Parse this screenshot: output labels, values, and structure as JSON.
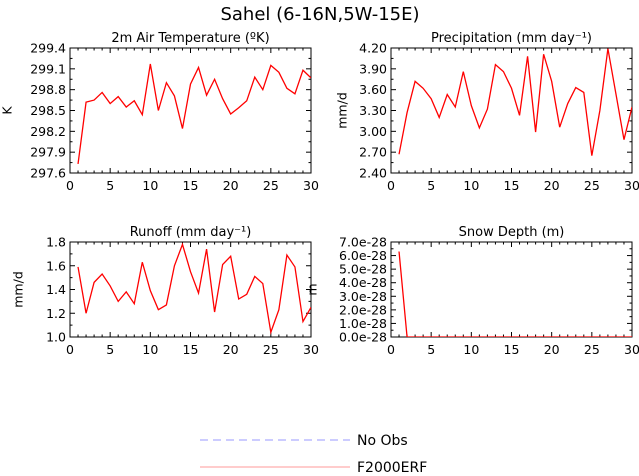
{
  "figure_title": "Sahel (6-16N,5W-15E)",
  "legend": [
    {
      "label": "No Obs",
      "color": "#9999ff",
      "style": "dashed"
    },
    {
      "label": "F2000ERF",
      "color": "#ff9999",
      "style": "solid"
    }
  ],
  "line_color": "#ff0000",
  "chart_data": [
    {
      "type": "line",
      "title": "2m Air Temperature (ºK)",
      "xlabel": "",
      "ylabel": "K",
      "xlim": [
        0,
        30
      ],
      "ylim": [
        297.6,
        299.4
      ],
      "xticks": [
        "0",
        "5",
        "10",
        "15",
        "20",
        "25",
        "30"
      ],
      "xtick_values": [
        0,
        5,
        10,
        15,
        20,
        25,
        30
      ],
      "yticks": [
        "297.6",
        "297.9",
        "298.2",
        "298.5",
        "298.8",
        "299.1",
        "299.4"
      ],
      "ytick_values": [
        297.6,
        297.9,
        298.2,
        298.5,
        298.8,
        299.1,
        299.4
      ],
      "series": [
        {
          "name": "F2000ERF",
          "x": [
            1,
            2,
            3,
            4,
            5,
            6,
            7,
            8,
            9,
            10,
            11,
            12,
            13,
            14,
            15,
            16,
            17,
            18,
            19,
            20,
            21,
            22,
            23,
            24,
            25,
            26,
            27,
            28,
            29,
            30
          ],
          "values": [
            297.73,
            298.62,
            298.65,
            298.76,
            298.6,
            298.7,
            298.55,
            298.64,
            298.44,
            299.17,
            298.5,
            298.9,
            298.71,
            298.24,
            298.88,
            299.12,
            298.72,
            298.95,
            298.67,
            298.45,
            298.54,
            298.64,
            298.98,
            298.8,
            299.15,
            299.05,
            298.82,
            298.74,
            299.08,
            298.97
          ]
        }
      ]
    },
    {
      "type": "line",
      "title": "Precipitation (mm day⁻¹)",
      "xlabel": "",
      "ylabel": "mm/d",
      "xlim": [
        0,
        30
      ],
      "ylim": [
        2.4,
        4.2
      ],
      "xticks": [
        "0",
        "5",
        "10",
        "15",
        "20",
        "25",
        "30"
      ],
      "xtick_values": [
        0,
        5,
        10,
        15,
        20,
        25,
        30
      ],
      "yticks": [
        "2.40",
        "2.70",
        "3.00",
        "3.30",
        "3.60",
        "3.90",
        "4.20"
      ],
      "ytick_values": [
        2.4,
        2.7,
        3.0,
        3.3,
        3.6,
        3.9,
        4.2
      ],
      "series": [
        {
          "name": "F2000ERF",
          "x": [
            1,
            2,
            3,
            4,
            5,
            6,
            7,
            8,
            9,
            10,
            11,
            12,
            13,
            14,
            15,
            16,
            17,
            18,
            19,
            20,
            21,
            22,
            23,
            24,
            25,
            26,
            27,
            28,
            29,
            30
          ],
          "values": [
            2.67,
            3.27,
            3.72,
            3.62,
            3.47,
            3.2,
            3.53,
            3.35,
            3.86,
            3.37,
            3.05,
            3.32,
            3.96,
            3.86,
            3.62,
            3.23,
            4.08,
            2.99,
            4.11,
            3.72,
            3.06,
            3.4,
            3.63,
            3.56,
            2.65,
            3.3,
            4.19,
            3.54,
            2.88,
            3.35
          ]
        }
      ]
    },
    {
      "type": "line",
      "title": "Runoff (mm day⁻¹)",
      "xlabel": "",
      "ylabel": "mm/d",
      "xlim": [
        0,
        30
      ],
      "ylim": [
        1.0,
        1.8
      ],
      "xticks": [
        "0",
        "5",
        "10",
        "15",
        "20",
        "25",
        "30"
      ],
      "xtick_values": [
        0,
        5,
        10,
        15,
        20,
        25,
        30
      ],
      "yticks": [
        "1.0",
        "1.2",
        "1.4",
        "1.6",
        "1.8"
      ],
      "ytick_values": [
        1.0,
        1.2,
        1.4,
        1.6,
        1.8
      ],
      "series": [
        {
          "name": "F2000ERF",
          "x": [
            1,
            2,
            3,
            4,
            5,
            6,
            7,
            8,
            9,
            10,
            11,
            12,
            13,
            14,
            15,
            16,
            17,
            18,
            19,
            20,
            21,
            22,
            23,
            24,
            25,
            26,
            27,
            28,
            29,
            30
          ],
          "values": [
            1.59,
            1.2,
            1.46,
            1.53,
            1.43,
            1.3,
            1.38,
            1.28,
            1.63,
            1.39,
            1.23,
            1.27,
            1.6,
            1.78,
            1.55,
            1.37,
            1.74,
            1.21,
            1.61,
            1.68,
            1.32,
            1.36,
            1.51,
            1.45,
            1.04,
            1.23,
            1.69,
            1.59,
            1.13,
            1.25
          ]
        }
      ]
    },
    {
      "type": "line",
      "title": "Snow Depth (m)",
      "xlabel": "",
      "ylabel": "m",
      "xlim": [
        0,
        30
      ],
      "ylim": [
        0,
        7e-28
      ],
      "xticks": [
        "0",
        "5",
        "10",
        "15",
        "20",
        "25",
        "30"
      ],
      "xtick_values": [
        0,
        5,
        10,
        15,
        20,
        25,
        30
      ],
      "yticks": [
        "0.0e-28",
        "1.0e-28",
        "2.0e-28",
        "3.0e-28",
        "4.0e-28",
        "5.0e-28",
        "6.0e-28",
        "7.0e-28"
      ],
      "ytick_values": [
        0,
        1e-28,
        2e-28,
        3e-28,
        4e-28,
        5e-28,
        6e-28,
        7e-28
      ],
      "series": [
        {
          "name": "F2000ERF",
          "x": [
            1,
            2,
            3,
            4,
            5,
            6,
            7,
            8,
            9,
            10,
            11,
            12,
            13,
            14,
            15,
            16,
            17,
            18,
            19,
            20,
            21,
            22,
            23,
            24,
            25,
            26,
            27,
            28,
            29,
            30
          ],
          "values": [
            6.3e-28,
            0,
            0,
            0,
            0,
            0,
            0,
            0,
            0,
            0,
            0,
            0,
            0,
            0,
            0,
            0,
            0,
            0,
            0,
            0,
            0,
            0,
            0,
            0,
            0,
            0,
            0,
            0,
            0,
            0
          ]
        }
      ]
    }
  ]
}
